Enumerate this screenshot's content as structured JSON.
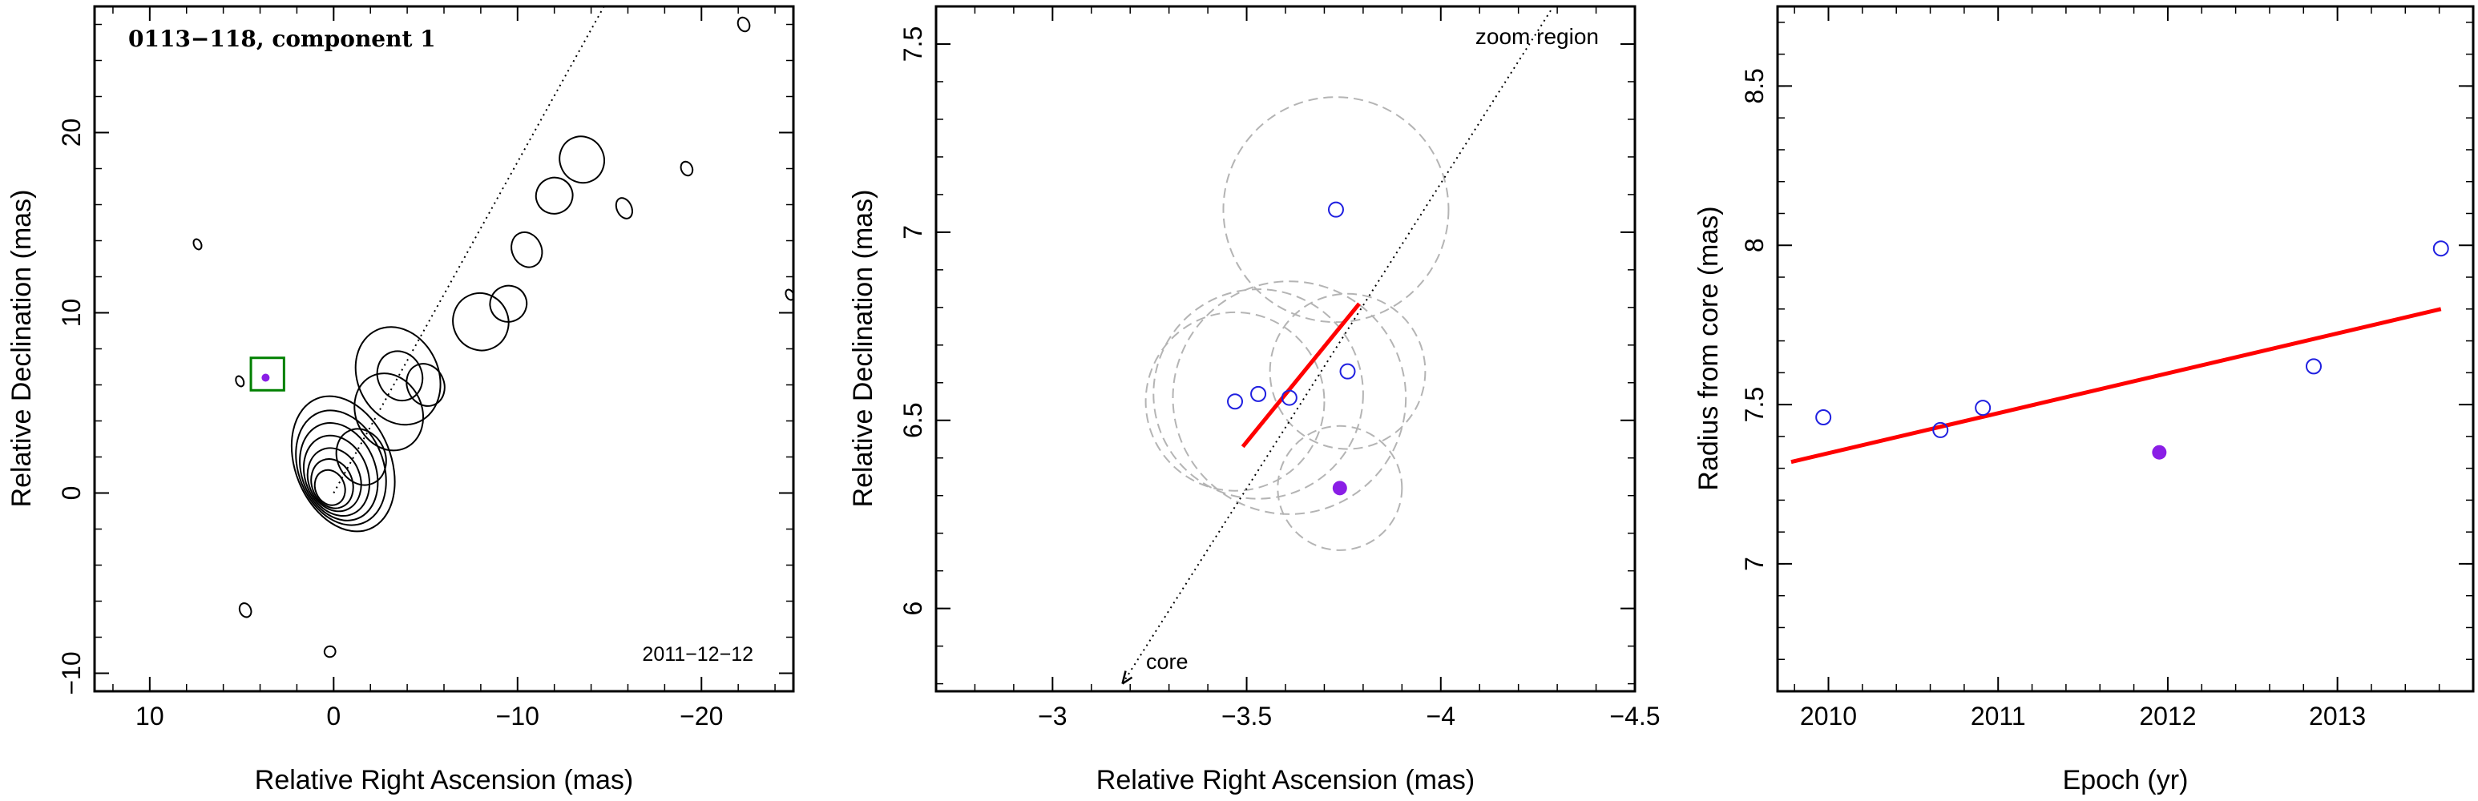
{
  "chart_data": [
    {
      "type": "contour",
      "title": "0113−118, component 1",
      "date_label": "2011−12−12",
      "xlabel": "Relative Right Ascension (mas)",
      "ylabel": "Relative Declination (mas)",
      "xlim": [
        13,
        -25
      ],
      "ylim": [
        -11,
        27
      ],
      "xticks": [
        10,
        0,
        -10,
        -20
      ],
      "xtick_labels": [
        "10",
        "0",
        "−10",
        "−20"
      ],
      "yticks": [
        -10,
        0,
        10,
        20
      ],
      "ytick_labels": [
        "−10",
        "0",
        "10",
        "20"
      ],
      "core_contours": {
        "x": 0.2,
        "y": 0.3,
        "rx": [
          0.8,
          1.1,
          1.4,
          1.7,
          2.0,
          2.3,
          2.6
        ],
        "ry": [
          1.0,
          1.4,
          1.8,
          2.3,
          2.8,
          3.3,
          3.9
        ]
      },
      "jet_blobs": [
        {
          "x": -1.5,
          "y": 2.0,
          "rx": 1.3,
          "ry": 1.6
        },
        {
          "x": -3.0,
          "y": 4.5,
          "rx": 1.8,
          "ry": 2.2
        },
        {
          "x": -3.5,
          "y": 6.5,
          "rx": 2.2,
          "ry": 2.8
        },
        {
          "x": -3.6,
          "y": 6.5,
          "rx": 1.2,
          "ry": 1.4
        },
        {
          "x": -5.0,
          "y": 6.0,
          "rx": 1.0,
          "ry": 1.2
        },
        {
          "x": -8.0,
          "y": 9.5,
          "rx": 1.5,
          "ry": 1.6
        },
        {
          "x": -9.5,
          "y": 10.5,
          "rx": 1.0,
          "ry": 1.0
        },
        {
          "x": -10.5,
          "y": 13.5,
          "rx": 0.8,
          "ry": 1.0
        },
        {
          "x": -12.0,
          "y": 16.5,
          "rx": 1.0,
          "ry": 1.0
        },
        {
          "x": -13.5,
          "y": 18.5,
          "rx": 1.2,
          "ry": 1.3
        },
        {
          "x": -15.8,
          "y": 15.8,
          "rx": 0.4,
          "ry": 0.6
        },
        {
          "x": -19.2,
          "y": 18.0,
          "rx": 0.3,
          "ry": 0.4
        },
        {
          "x": 7.4,
          "y": 13.8,
          "rx": 0.2,
          "ry": 0.3
        },
        {
          "x": 5.1,
          "y": 6.2,
          "rx": 0.2,
          "ry": 0.3
        },
        {
          "x": 4.8,
          "y": -6.5,
          "rx": 0.3,
          "ry": 0.4
        },
        {
          "x": 0.2,
          "y": -8.8,
          "rx": 0.3,
          "ry": 0.3
        },
        {
          "x": -22.3,
          "y": 26.0,
          "rx": 0.3,
          "ry": 0.4
        },
        {
          "x": -24.8,
          "y": 11.0,
          "rx": 0.2,
          "ry": 0.3
        }
      ],
      "guide_line": {
        "from": [
          0,
          0
        ],
        "to": [
          -14.7,
          27
        ]
      },
      "zoom_box": {
        "x_range": [
          2.7,
          4.5
        ],
        "y_range": [
          5.7,
          7.5
        ]
      },
      "highlight_point": {
        "x": 3.7,
        "y": 6.4
      }
    },
    {
      "type": "scatter",
      "xlabel": "Relative Right Ascension (mas)",
      "ylabel": "Relative Declination (mas)",
      "xlim": [
        -2.7,
        -4.5
      ],
      "ylim": [
        5.78,
        7.6
      ],
      "xticks": [
        -3,
        -3.5,
        -4,
        -4.5
      ],
      "xtick_labels": [
        "−3",
        "−3.5",
        "−4",
        "−4.5"
      ],
      "yticks": [
        6,
        6.5,
        7,
        7.5
      ],
      "ytick_labels": [
        "6",
        "6.5",
        "7",
        "7.5"
      ],
      "zoom_label": "zoom region",
      "core_label": "core",
      "guide_line": {
        "from": [
          -3.18,
          5.8
        ],
        "to": [
          -4.29,
          7.6
        ]
      },
      "fit_line": {
        "from": [
          -3.49,
          6.43
        ],
        "to": [
          -3.79,
          6.81
        ]
      },
      "points_open": [
        {
          "x": -3.73,
          "y": 7.06
        },
        {
          "x": -3.47,
          "y": 6.55
        },
        {
          "x": -3.53,
          "y": 6.57
        },
        {
          "x": -3.61,
          "y": 6.56
        },
        {
          "x": -3.76,
          "y": 6.63
        }
      ],
      "points_filled": [
        {
          "x": -3.74,
          "y": 6.32
        }
      ],
      "error_circles": [
        {
          "x": -3.73,
          "y": 7.06,
          "r": 0.29
        },
        {
          "x": -3.47,
          "y": 6.55,
          "r": 0.23
        },
        {
          "x": -3.53,
          "y": 6.57,
          "r": 0.27
        },
        {
          "x": -3.61,
          "y": 6.56,
          "r": 0.3
        },
        {
          "x": -3.76,
          "y": 6.63,
          "r": 0.2
        },
        {
          "x": -3.74,
          "y": 6.32,
          "r": 0.16
        }
      ]
    },
    {
      "type": "scatter",
      "xlabel": "Epoch (yr)",
      "ylabel": "Radius from core (mas)",
      "xlim": [
        2009.7,
        2013.8
      ],
      "ylim": [
        6.6,
        8.75
      ],
      "xticks": [
        2010,
        2011,
        2012,
        2013
      ],
      "xtick_labels": [
        "2010",
        "2011",
        "2012",
        "2013"
      ],
      "yticks": [
        7,
        7.5,
        8,
        8.5
      ],
      "ytick_labels": [
        "7",
        "7.5",
        "8",
        "8.5"
      ],
      "points_open": [
        {
          "x": 2009.97,
          "y": 7.46
        },
        {
          "x": 2010.66,
          "y": 7.42
        },
        {
          "x": 2010.91,
          "y": 7.49
        },
        {
          "x": 2012.86,
          "y": 7.62
        },
        {
          "x": 2013.61,
          "y": 7.99
        }
      ],
      "points_filled": [
        {
          "x": 2011.95,
          "y": 7.35
        }
      ],
      "fit_line": {
        "from": [
          2009.78,
          7.32
        ],
        "to": [
          2013.61,
          7.8
        ]
      }
    }
  ],
  "colors": {
    "fit": "#ff0000",
    "open_marker": "#2020e0",
    "filled_marker": "#8a1ee6",
    "error_circle": "#b4b4b4",
    "zoom_box": "#008000",
    "axes": "#000000"
  }
}
